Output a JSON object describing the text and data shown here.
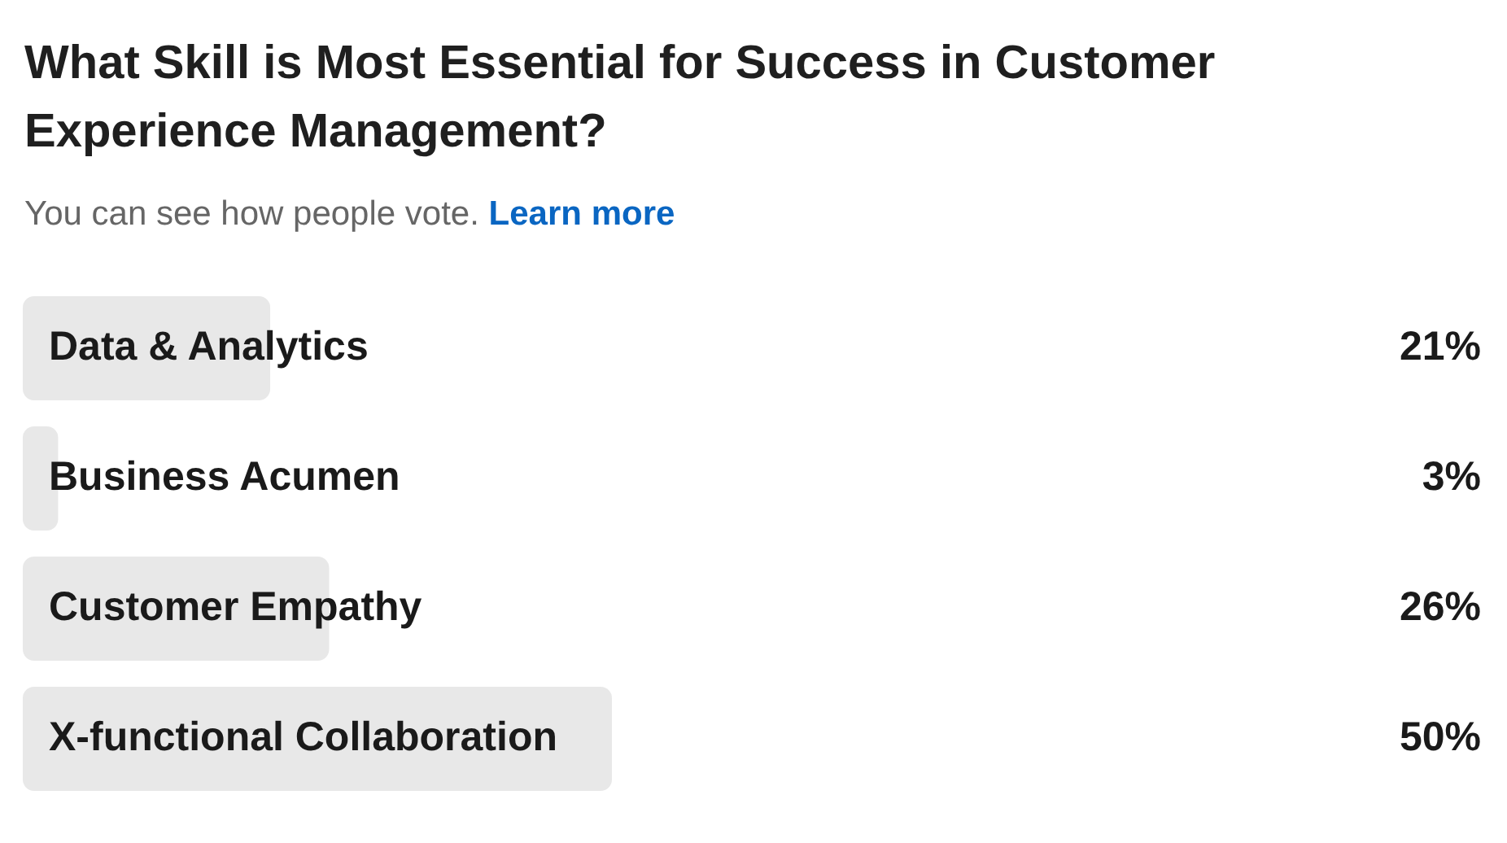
{
  "chart_data": {
    "type": "bar",
    "orientation": "horizontal",
    "title": "What Skill is Most Essential for Success in Customer Experience Management?",
    "subtitle": "You can see how people vote.",
    "annotations": [
      "Learn more"
    ],
    "categories": [
      "Data & Analytics",
      "Business Acumen",
      "Customer Empathy",
      "X-functional Collaboration"
    ],
    "values": [
      21,
      3,
      26,
      50
    ],
    "value_labels": [
      "21%",
      "3%",
      "26%",
      "50%"
    ],
    "color": "#e8e8e8",
    "tick_labels": false
  }
}
